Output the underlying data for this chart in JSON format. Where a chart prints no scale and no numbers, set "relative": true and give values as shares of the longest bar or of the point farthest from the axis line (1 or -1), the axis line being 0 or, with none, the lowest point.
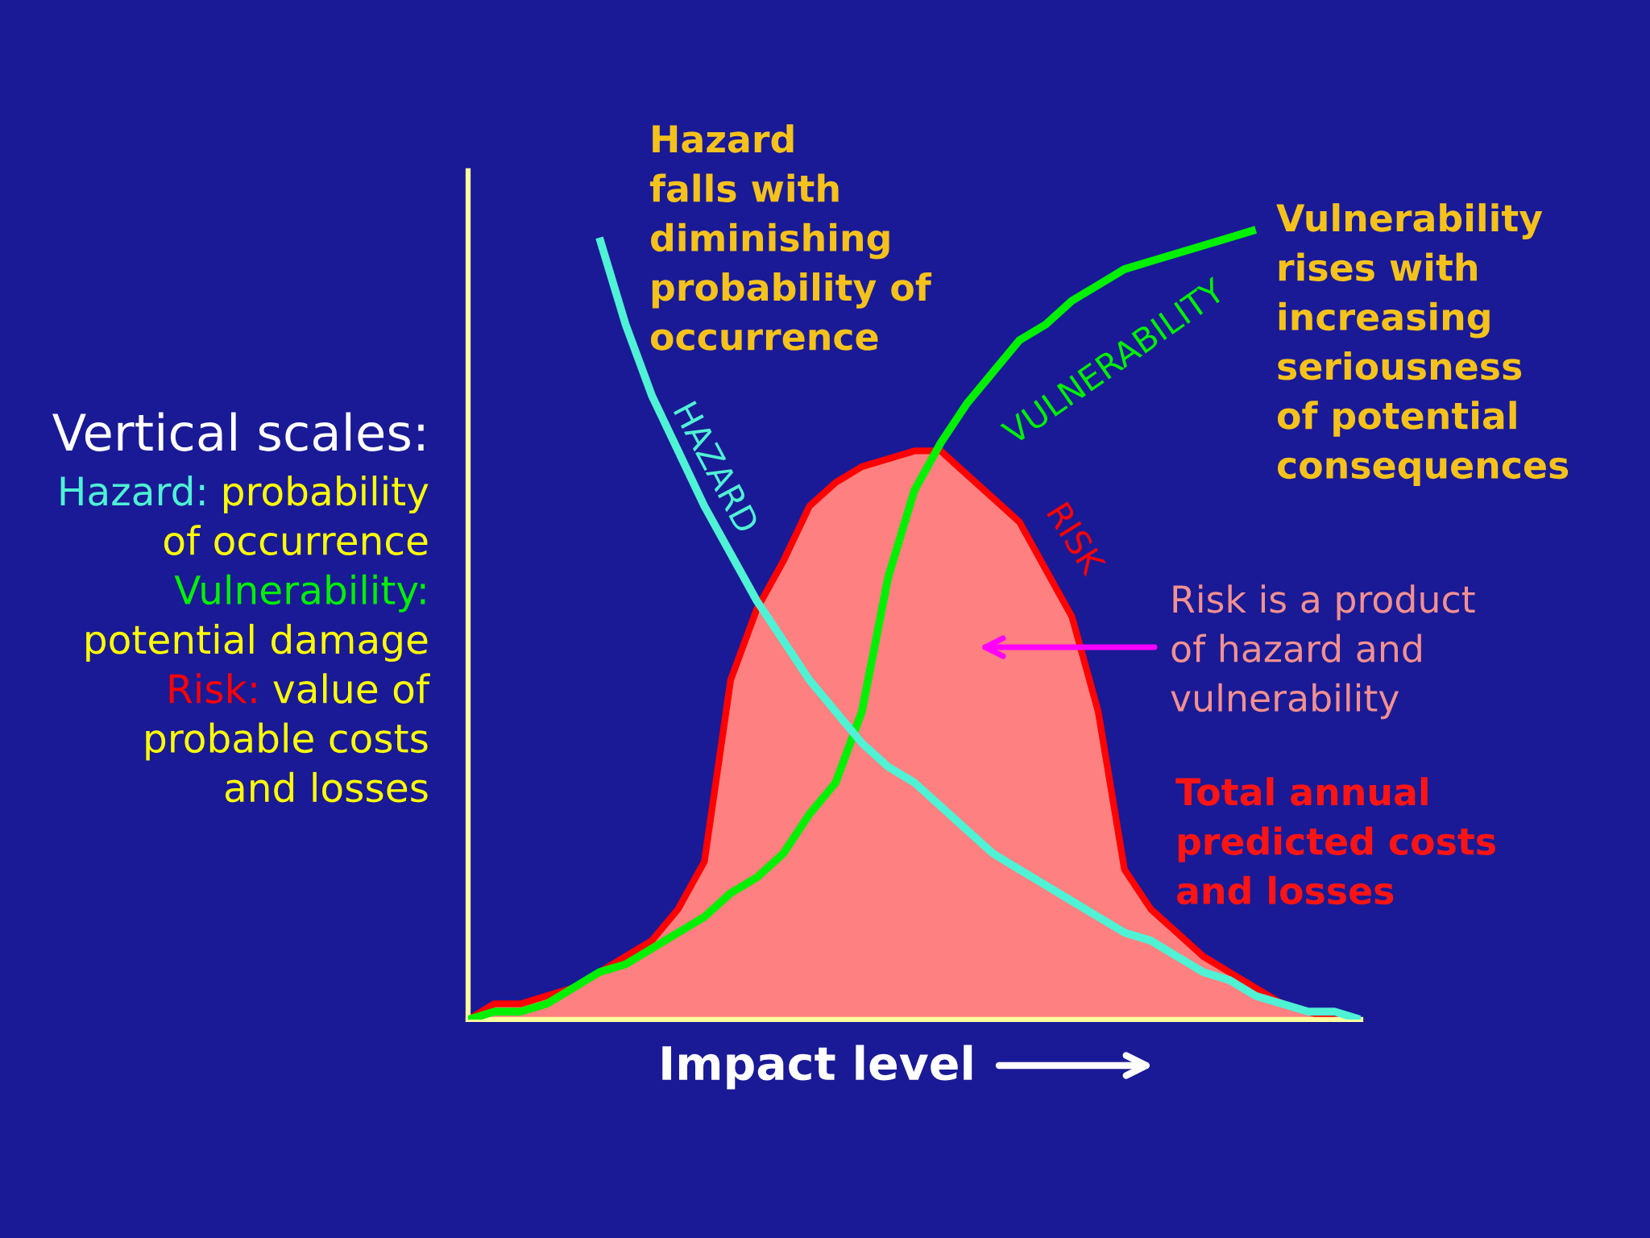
{
  "chart_data": {
    "type": "line",
    "relative": true,
    "xlabel": "Impact level",
    "categories": [
      null,
      null,
      null,
      null,
      null,
      null,
      null,
      null,
      null,
      null,
      null,
      null,
      null,
      null,
      null,
      null,
      null,
      null,
      null,
      null,
      null,
      null,
      null,
      null,
      null,
      null,
      null,
      null,
      null,
      null,
      null,
      null,
      null,
      null,
      null
    ],
    "series": [
      {
        "name": "HAZARD",
        "color": "#4ff2d4",
        "values": [
          null,
          null,
          null,
          null,
          null,
          0.99,
          0.88,
          0.79,
          0.72,
          0.65,
          0.59,
          0.53,
          0.48,
          0.43,
          0.39,
          0.35,
          0.32,
          0.3,
          0.27,
          0.24,
          0.21,
          0.19,
          0.17,
          0.15,
          0.13,
          0.11,
          0.1,
          0.08,
          0.06,
          0.05,
          0.03,
          0.02,
          0.01,
          0.01,
          0.0
        ]
      },
      {
        "name": "VULNERABILITY",
        "color": "#00f000",
        "values": [
          0.0,
          0.01,
          0.01,
          0.02,
          0.04,
          0.06,
          0.07,
          0.09,
          0.11,
          0.13,
          0.16,
          0.18,
          0.21,
          0.26,
          0.3,
          0.39,
          0.56,
          0.67,
          0.73,
          0.78,
          0.82,
          0.86,
          0.88,
          0.91,
          0.93,
          0.95,
          0.96,
          0.97,
          0.98,
          0.99,
          1.0,
          null,
          null,
          null,
          null
        ]
      },
      {
        "name": "RISK",
        "type": "area",
        "color": "#ff8080",
        "values": [
          0.0,
          0.02,
          0.02,
          0.03,
          0.04,
          0.06,
          0.08,
          0.1,
          0.14,
          0.2,
          0.43,
          0.52,
          0.58,
          0.65,
          0.68,
          0.7,
          0.71,
          0.72,
          0.72,
          0.69,
          0.66,
          0.63,
          0.57,
          0.51,
          0.39,
          0.19,
          0.14,
          0.11,
          0.08,
          0.06,
          0.04,
          0.02,
          0.01,
          0.0,
          0.0
        ]
      }
    ],
    "annotations": [
      "Vertical scales:",
      "Hazard: probability\nof occurrence",
      "Vulnerability:\npotential damage",
      "Risk: value of\nprobable costs\nand losses",
      "Hazard\nfalls with\ndiminishing\nprobability of\noccurrence",
      "Vulnerability\nrises with\nincreasing\nseriousness\nof potential\nconsequences",
      "Risk is a product\nof hazard and\nvulnerability",
      "Total annual\npredicted costs\nand losses"
    ]
  }
}
